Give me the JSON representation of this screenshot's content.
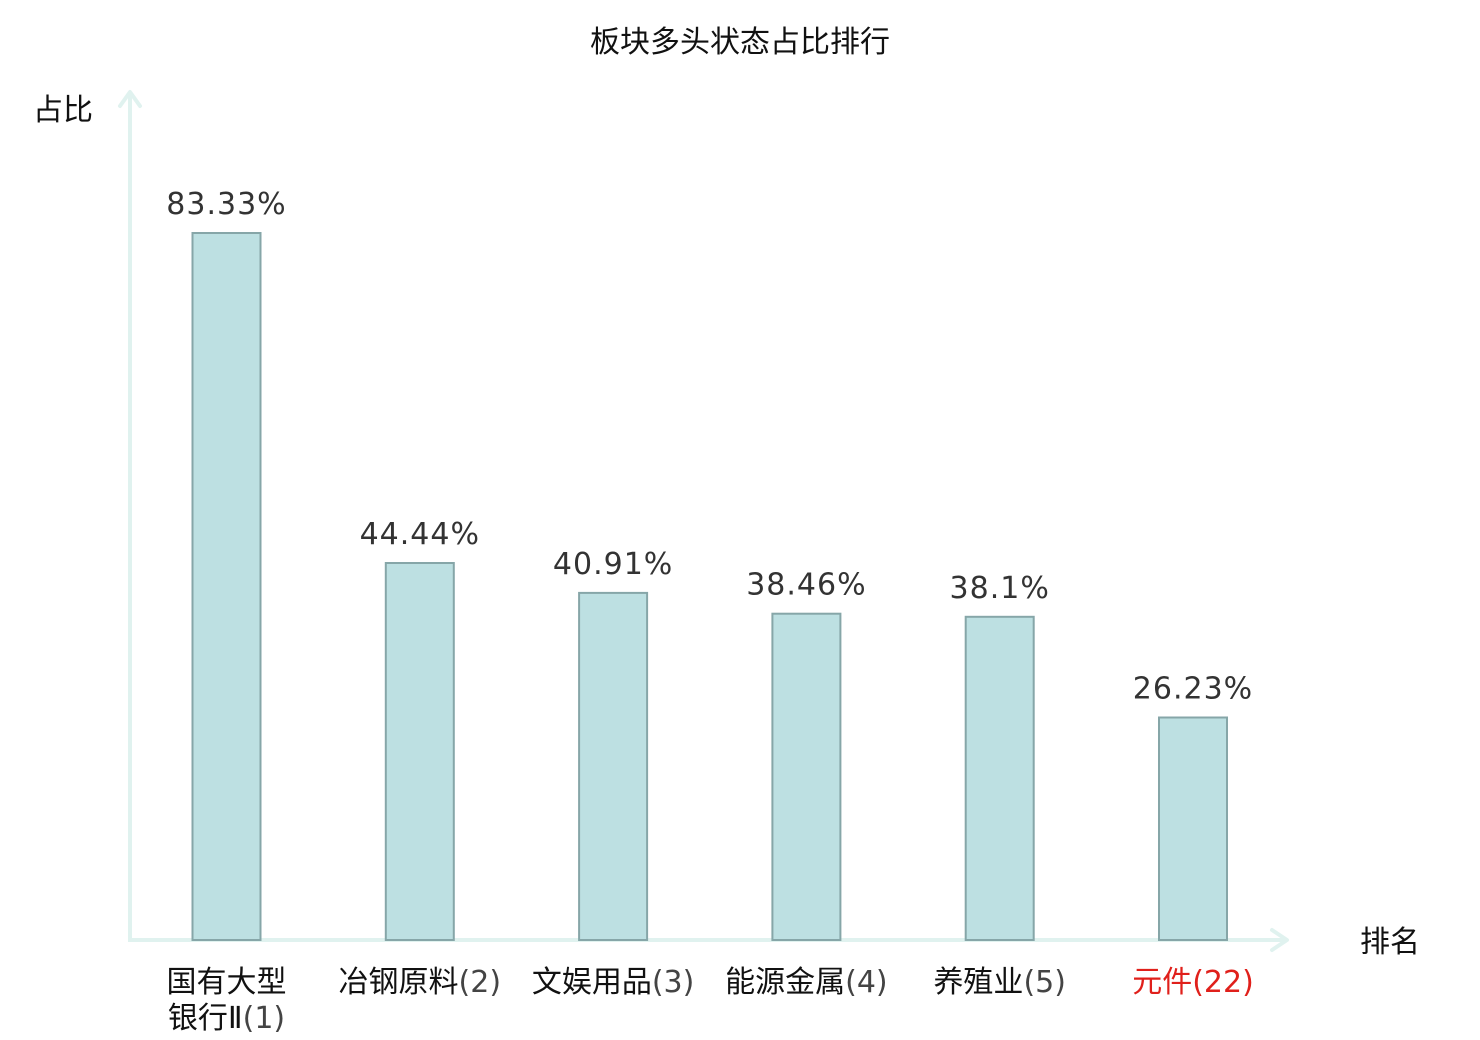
{
  "chart_data": {
    "type": "bar",
    "title": "板块多头状态占比排行",
    "ylabel": "占比",
    "xlabel": "排名",
    "categories": [
      {
        "name_lines": [
          "国有大型",
          "银行Ⅱ"
        ],
        "rank": "(1)",
        "highlight": false
      },
      {
        "name_lines": [
          "冶钢原料"
        ],
        "rank": "(2)",
        "highlight": false
      },
      {
        "name_lines": [
          "文娱用品"
        ],
        "rank": "(3)",
        "highlight": false
      },
      {
        "name_lines": [
          "能源金属"
        ],
        "rank": "(4)",
        "highlight": false
      },
      {
        "name_lines": [
          "养殖业"
        ],
        "rank": "(5)",
        "highlight": false
      },
      {
        "name_lines": [
          "元件"
        ],
        "rank": "(22)",
        "highlight": true
      }
    ],
    "values": [
      83.33,
      44.44,
      40.91,
      38.46,
      38.1,
      26.23
    ],
    "value_labels": [
      "83.33%",
      "44.44%",
      "40.91%",
      "38.46%",
      "38.1%",
      "26.23%"
    ],
    "ylim": [
      0,
      100
    ],
    "grid": false,
    "legend": "none"
  },
  "colors": {
    "bar_fill": "#bde0e2",
    "bar_stroke": "#86a6a8",
    "axis": "#e0f2ef",
    "text": "#111111",
    "rank_text": "#444444",
    "highlight": "#e0201b"
  }
}
